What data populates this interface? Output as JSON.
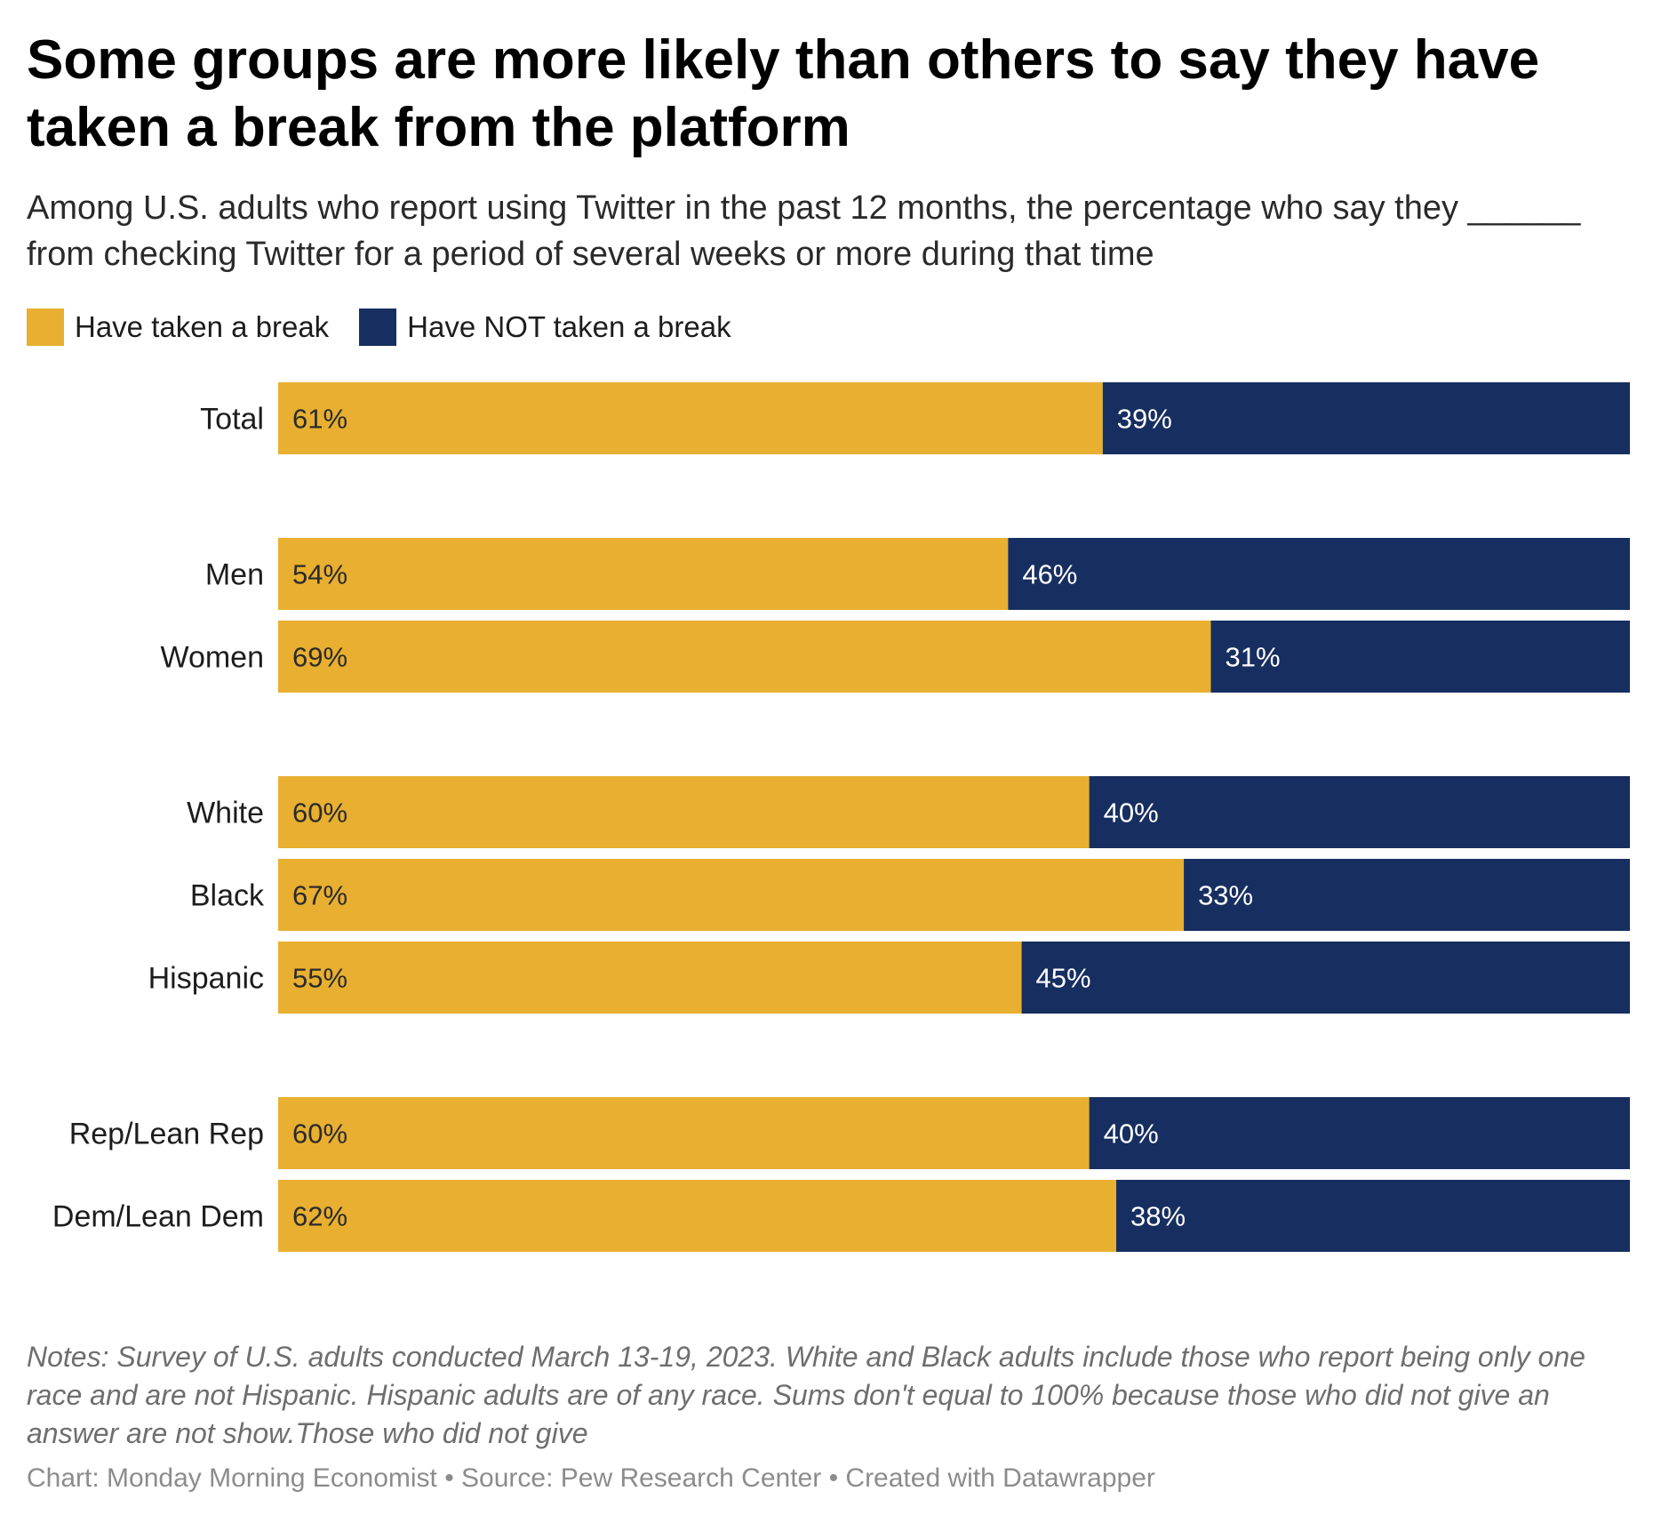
{
  "header": {
    "title": "Some groups are more likely than others to say they have taken a break from the platform",
    "subtitle": "Among U.S. adults who report using Twitter in the past 12 months, the percentage who say they ______ from checking Twitter for a period of several weeks or more during that time"
  },
  "legend": {
    "items": [
      {
        "label": "Have taken a break",
        "color": "#E8AF30"
      },
      {
        "label": "Have NOT taken a break",
        "color": "#172E60"
      }
    ]
  },
  "chart_data": {
    "type": "bar",
    "orientation": "horizontal",
    "stacked": true,
    "categories": [
      "Total",
      "Men",
      "Women",
      "White",
      "Black",
      "Hispanic",
      "Rep/Lean Rep",
      "Dem/Lean Dem"
    ],
    "groups": [
      [
        "Total"
      ],
      [
        "Men",
        "Women"
      ],
      [
        "White",
        "Black",
        "Hispanic"
      ],
      [
        "Rep/Lean Rep",
        "Dem/Lean Dem"
      ]
    ],
    "series": [
      {
        "name": "Have taken a break",
        "color": "#E8AF30",
        "label_color": "#2b2b2b",
        "values": [
          61,
          54,
          69,
          60,
          67,
          55,
          60,
          62
        ]
      },
      {
        "name": "Have NOT taken a break",
        "color": "#172E60",
        "label_color": "#ffffff",
        "values": [
          39,
          46,
          31,
          40,
          33,
          45,
          40,
          38
        ]
      }
    ],
    "value_suffix": "%",
    "legend_position": "top-left",
    "grid": false
  },
  "footer": {
    "notes": "Notes: Survey of U.S. adults conducted March 13-19, 2023. White and Black adults include those who report being only one race and are not Hispanic. Hispanic adults are of any race. Sums don't equal to 100% because those who did not give an answer are not show.Those who did not give",
    "credits": "Chart: Monday Morning Economist • Source: Pew Research Center • Created with Datawrapper"
  }
}
